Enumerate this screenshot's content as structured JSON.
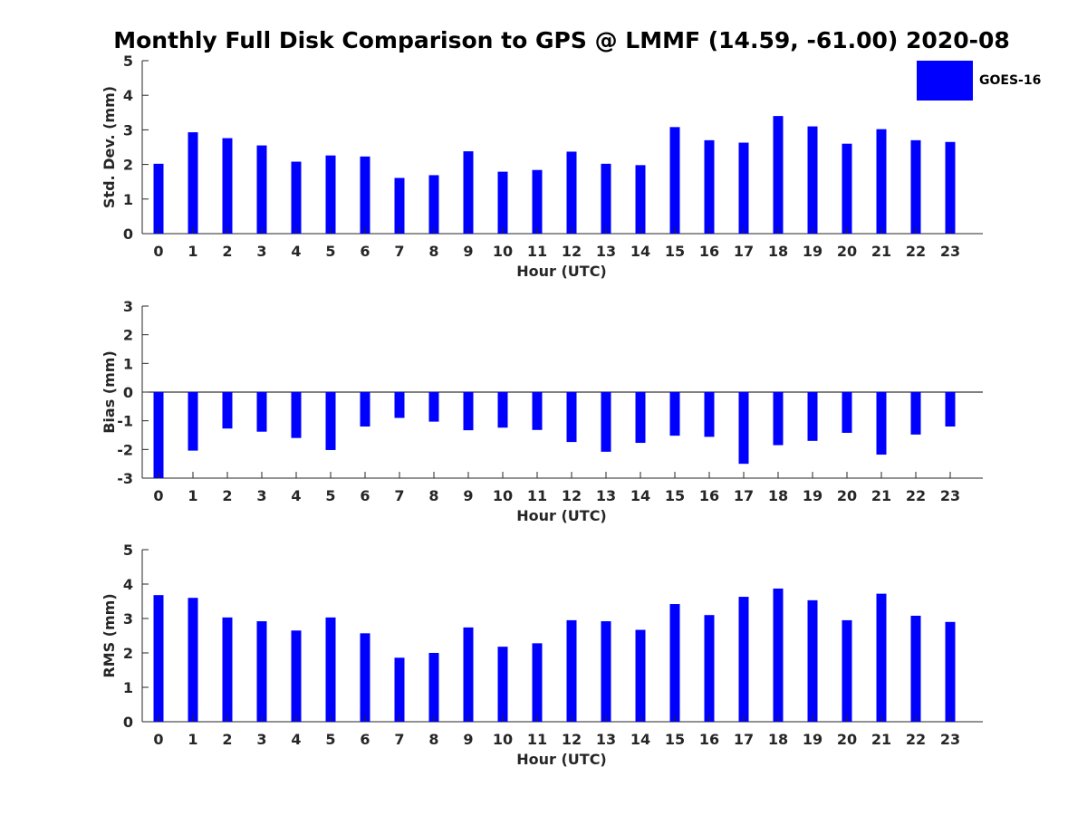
{
  "title": "Monthly Full Disk Comparison to GPS @ LMMF (14.59, -61.00) 2020-08",
  "legend": {
    "label": "GOES-16",
    "color": "#0000ff"
  },
  "chart_data": [
    {
      "type": "bar",
      "ylabel": "Std. Dev. (mm)",
      "xlabel": "Hour (UTC)",
      "categories": [
        "0",
        "1",
        "2",
        "3",
        "4",
        "5",
        "6",
        "7",
        "8",
        "9",
        "10",
        "11",
        "12",
        "13",
        "14",
        "15",
        "16",
        "17",
        "18",
        "19",
        "20",
        "21",
        "22",
        "23"
      ],
      "ylim": [
        0,
        5
      ],
      "yticks": [
        0,
        1,
        2,
        3,
        4,
        5
      ],
      "series": [
        {
          "name": "GOES-16",
          "values": [
            2.02,
            2.93,
            2.76,
            2.55,
            2.08,
            2.26,
            2.23,
            1.61,
            1.69,
            2.38,
            1.79,
            1.84,
            2.37,
            2.02,
            1.98,
            3.08,
            2.7,
            2.63,
            3.4,
            3.1,
            2.6,
            3.02,
            2.7,
            2.65
          ]
        }
      ]
    },
    {
      "type": "bar",
      "ylabel": "Bias (mm)",
      "xlabel": "Hour (UTC)",
      "categories": [
        "0",
        "1",
        "2",
        "3",
        "4",
        "5",
        "6",
        "7",
        "8",
        "9",
        "10",
        "11",
        "12",
        "13",
        "14",
        "15",
        "16",
        "17",
        "18",
        "19",
        "20",
        "21",
        "22",
        "23"
      ],
      "ylim": [
        -3,
        3
      ],
      "yticks": [
        -3,
        -2,
        -1,
        0,
        1,
        2,
        3
      ],
      "series": [
        {
          "name": "GOES-16",
          "values": [
            -3.0,
            -2.04,
            -1.27,
            -1.38,
            -1.6,
            -2.02,
            -1.2,
            -0.9,
            -1.03,
            -1.33,
            -1.24,
            -1.32,
            -1.74,
            -2.08,
            -1.77,
            -1.52,
            -1.56,
            -2.5,
            -1.85,
            -1.7,
            -1.42,
            -2.18,
            -1.48,
            -1.2
          ]
        }
      ]
    },
    {
      "type": "bar",
      "ylabel": "RMS (mm)",
      "xlabel": "Hour (UTC)",
      "categories": [
        "0",
        "1",
        "2",
        "3",
        "4",
        "5",
        "6",
        "7",
        "8",
        "9",
        "10",
        "11",
        "12",
        "13",
        "14",
        "15",
        "16",
        "17",
        "18",
        "19",
        "20",
        "21",
        "22",
        "23"
      ],
      "ylim": [
        0,
        5
      ],
      "yticks": [
        0,
        1,
        2,
        3,
        4,
        5
      ],
      "series": [
        {
          "name": "GOES-16",
          "values": [
            3.68,
            3.6,
            3.03,
            2.92,
            2.65,
            3.03,
            2.57,
            1.86,
            2.0,
            2.74,
            2.18,
            2.28,
            2.95,
            2.92,
            2.67,
            3.42,
            3.1,
            3.63,
            3.87,
            3.53,
            2.95,
            3.72,
            3.08,
            2.9
          ]
        }
      ]
    }
  ]
}
